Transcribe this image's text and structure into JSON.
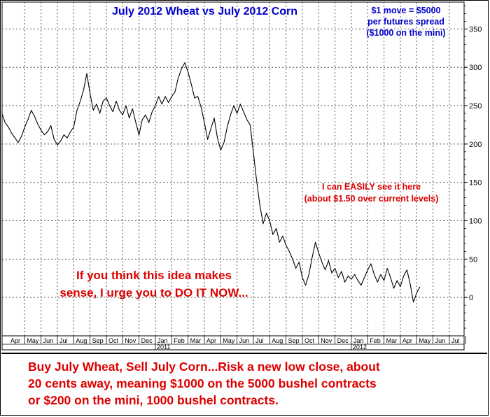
{
  "chart_data": {
    "type": "line",
    "title": "July 2012 Wheat vs July 2012 Corn",
    "y_ticks": [
      0,
      50,
      100,
      150,
      200,
      250,
      300,
      350
    ],
    "ylim": [
      -50,
      385
    ],
    "month_labels": [
      "Apr",
      "May",
      "Jun",
      "Jul",
      "Aug",
      "Sep",
      "Oct",
      "Nov",
      "Dec",
      "Jan",
      "Feb",
      "Mar",
      "Apr",
      "May",
      "Jun",
      "Jul",
      "Aug",
      "Sep",
      "Oct",
      "Nov",
      "Dec",
      "Jan",
      "Feb",
      "Mar",
      "Apr",
      "May",
      "Jun",
      "Jul"
    ],
    "year_labels": [
      {
        "label": "2011",
        "month_index": 9
      },
      {
        "label": "2012",
        "month_index": 21
      }
    ],
    "grid": true,
    "series": [
      {
        "color": "#000000",
        "points": [
          [
            -0.4,
            240
          ],
          [
            -0.2,
            228
          ],
          [
            0.0,
            222
          ],
          [
            0.2,
            214
          ],
          [
            0.4,
            208
          ],
          [
            0.6,
            202
          ],
          [
            0.8,
            210
          ],
          [
            1.0,
            222
          ],
          [
            1.2,
            232
          ],
          [
            1.4,
            244
          ],
          [
            1.6,
            236
          ],
          [
            1.8,
            226
          ],
          [
            2.0,
            218
          ],
          [
            2.2,
            212
          ],
          [
            2.4,
            216
          ],
          [
            2.6,
            224
          ],
          [
            2.8,
            206
          ],
          [
            3.0,
            199
          ],
          [
            3.2,
            204
          ],
          [
            3.4,
            212
          ],
          [
            3.6,
            208
          ],
          [
            3.8,
            216
          ],
          [
            4.0,
            222
          ],
          [
            4.2,
            244
          ],
          [
            4.4,
            256
          ],
          [
            4.6,
            270
          ],
          [
            4.8,
            292
          ],
          [
            5.0,
            266
          ],
          [
            5.2,
            244
          ],
          [
            5.4,
            252
          ],
          [
            5.6,
            240
          ],
          [
            5.8,
            256
          ],
          [
            6.0,
            260
          ],
          [
            6.2,
            250
          ],
          [
            6.4,
            242
          ],
          [
            6.6,
            256
          ],
          [
            6.8,
            244
          ],
          [
            7.0,
            238
          ],
          [
            7.2,
            250
          ],
          [
            7.4,
            234
          ],
          [
            7.6,
            246
          ],
          [
            7.8,
            228
          ],
          [
            8.0,
            212
          ],
          [
            8.2,
            232
          ],
          [
            8.4,
            238
          ],
          [
            8.6,
            228
          ],
          [
            8.8,
            242
          ],
          [
            9.0,
            250
          ],
          [
            9.2,
            262
          ],
          [
            9.4,
            252
          ],
          [
            9.6,
            262
          ],
          [
            9.8,
            254
          ],
          [
            10.0,
            262
          ],
          [
            10.2,
            268
          ],
          [
            10.4,
            286
          ],
          [
            10.6,
            298
          ],
          [
            10.8,
            306
          ],
          [
            11.0,
            294
          ],
          [
            11.2,
            278
          ],
          [
            11.4,
            260
          ],
          [
            11.6,
            262
          ],
          [
            11.8,
            248
          ],
          [
            12.0,
            228
          ],
          [
            12.2,
            206
          ],
          [
            12.4,
            220
          ],
          [
            12.6,
            234
          ],
          [
            12.8,
            208
          ],
          [
            13.0,
            192
          ],
          [
            13.2,
            202
          ],
          [
            13.4,
            222
          ],
          [
            13.6,
            238
          ],
          [
            13.8,
            250
          ],
          [
            14.0,
            240
          ],
          [
            14.2,
            252
          ],
          [
            14.4,
            242
          ],
          [
            14.6,
            232
          ],
          [
            14.8,
            225
          ],
          [
            15.0,
            190
          ],
          [
            15.2,
            152
          ],
          [
            15.4,
            120
          ],
          [
            15.6,
            96
          ],
          [
            15.8,
            110
          ],
          [
            16.0,
            100
          ],
          [
            16.2,
            82
          ],
          [
            16.4,
            90
          ],
          [
            16.6,
            72
          ],
          [
            16.8,
            80
          ],
          [
            17.0,
            68
          ],
          [
            17.2,
            60
          ],
          [
            17.4,
            50
          ],
          [
            17.6,
            38
          ],
          [
            17.8,
            46
          ],
          [
            18.0,
            26
          ],
          [
            18.2,
            16
          ],
          [
            18.4,
            30
          ],
          [
            18.6,
            52
          ],
          [
            18.8,
            72
          ],
          [
            19.0,
            58
          ],
          [
            19.2,
            46
          ],
          [
            19.4,
            36
          ],
          [
            19.6,
            48
          ],
          [
            19.8,
            32
          ],
          [
            20.0,
            38
          ],
          [
            20.2,
            26
          ],
          [
            20.4,
            34
          ],
          [
            20.6,
            20
          ],
          [
            20.8,
            28
          ],
          [
            21.0,
            24
          ],
          [
            21.2,
            30
          ],
          [
            21.4,
            22
          ],
          [
            21.6,
            16
          ],
          [
            21.8,
            26
          ],
          [
            22.0,
            36
          ],
          [
            22.2,
            44
          ],
          [
            22.4,
            30
          ],
          [
            22.6,
            20
          ],
          [
            22.8,
            30
          ],
          [
            23.0,
            22
          ],
          [
            23.2,
            38
          ],
          [
            23.4,
            26
          ],
          [
            23.6,
            12
          ],
          [
            23.8,
            22
          ],
          [
            24.0,
            14
          ],
          [
            24.2,
            28
          ],
          [
            24.4,
            36
          ],
          [
            24.6,
            18
          ],
          [
            24.8,
            -6
          ],
          [
            25.0,
            6
          ],
          [
            25.2,
            14
          ]
        ]
      }
    ]
  },
  "annotations": {
    "spread_note": [
      "$1 move = $5000",
      "per futures spread",
      "($1000 on the mini)"
    ],
    "easy_note": [
      "I can EASILY see it here",
      "(about $1.50 over current levels)"
    ],
    "do_it_note": [
      "If you think this idea makes",
      "sense, I urge you to DO IT NOW..."
    ]
  },
  "footer": {
    "lines": [
      "Buy July Wheat, Sell July Corn...Risk a new low close, about",
      "20 cents away, meaning $1000 on the 5000 bushel contracts",
      "or $200 on the mini, 1000 bushel contracts."
    ]
  }
}
